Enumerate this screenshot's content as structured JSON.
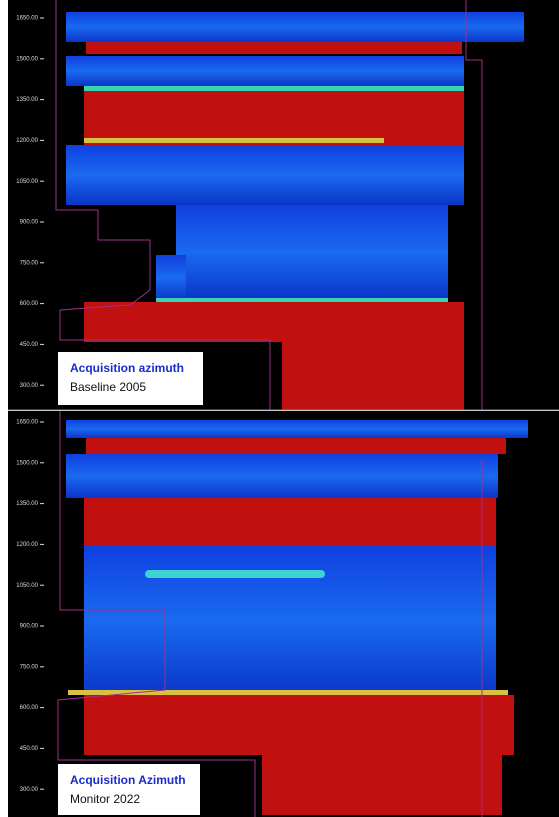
{
  "panels": [
    {
      "ticks": [
        "1650.00",
        "1500.00",
        "1350.00",
        "1200.00",
        "1050.00",
        "900.00",
        "750.00",
        "600.00",
        "450.00",
        "300.00"
      ],
      "caption": {
        "line1": "Acquisition azimuth",
        "line2": "Baseline 2005"
      }
    },
    {
      "ticks": [
        "1650.00",
        "1500.00",
        "1350.00",
        "1200.00",
        "1050.00",
        "900.00",
        "750.00",
        "600.00",
        "450.00",
        "300.00"
      ],
      "caption": {
        "line1": "Acquisition Azimuth",
        "line2": "Monitor 2022"
      }
    }
  ]
}
